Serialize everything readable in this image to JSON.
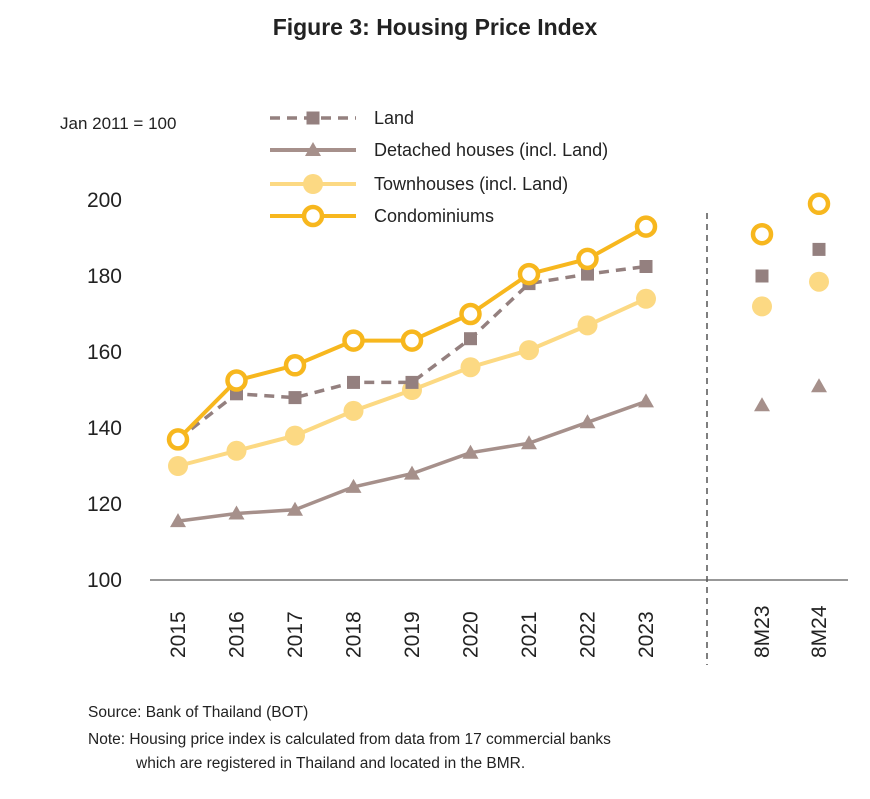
{
  "title": "Figure 3: Housing Price Index",
  "source": "Source: Bank of Thailand (BOT)",
  "note_line1": "Note: Housing price index is calculated from data from 17 commercial banks",
  "note_line2": "which are registered in Thailand and located in the BMR.",
  "chart_data": {
    "type": "line",
    "ylabel": "Jan 2011 = 100",
    "ylim": [
      100,
      200
    ],
    "yticks": [
      100,
      120,
      140,
      160,
      180,
      200
    ],
    "categories": [
      "2015",
      "2016",
      "2017",
      "2018",
      "2019",
      "2020",
      "2021",
      "2022",
      "2023"
    ],
    "extra_categories": [
      "8M23",
      "8M24"
    ],
    "legend_position": "top",
    "series": [
      {
        "name": "Land",
        "color": "#94807f",
        "marker": "square",
        "dash": true,
        "values": [
          137,
          149,
          148,
          152,
          152,
          163.5,
          178,
          180.5,
          182.5
        ],
        "extra_values": [
          180,
          187
        ]
      },
      {
        "name": "Detached houses (incl. Land)",
        "color": "#a6908b",
        "marker": "triangle",
        "dash": false,
        "values": [
          115.5,
          117.5,
          118.5,
          124.5,
          128,
          133.5,
          136,
          141.5,
          147
        ],
        "extra_values": [
          146,
          151
        ]
      },
      {
        "name": "Townhouses (incl. Land)",
        "color": "#fcd983",
        "marker": "circle",
        "dash": false,
        "values": [
          130,
          134,
          138,
          144.5,
          150,
          156,
          160.5,
          167,
          174
        ],
        "extra_values": [
          172,
          178.5
        ]
      },
      {
        "name": "Condominiums",
        "color": "#f7b71e",
        "marker": "ring",
        "dash": false,
        "values": [
          137,
          152.5,
          156.5,
          163,
          163,
          170,
          180.5,
          184.5,
          193
        ],
        "extra_values": [
          191,
          199
        ]
      }
    ]
  }
}
